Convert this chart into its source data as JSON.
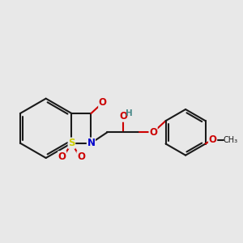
{
  "bg_color": "#e8e8e8",
  "bond_color": "#1a1a1a",
  "bond_width": 1.5,
  "atom_colors": {
    "O": "#cc0000",
    "N": "#0000cc",
    "S": "#cccc00",
    "H": "#4a8a8a",
    "C": "#1a1a1a"
  },
  "font_size": 8.5,
  "font_size_small": 7.5
}
